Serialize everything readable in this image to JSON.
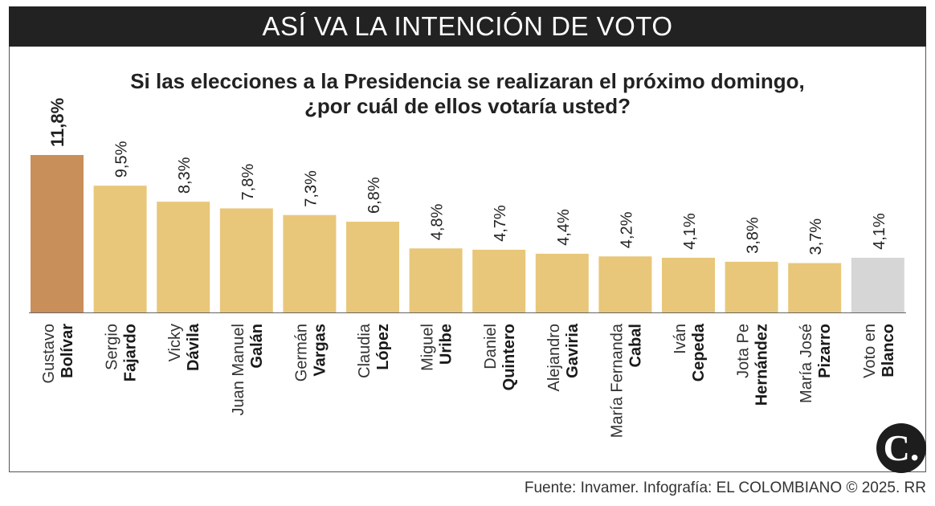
{
  "header": {
    "title": "ASÍ VA LA INTENCIÓN DE VOTO"
  },
  "subtitle": {
    "line1": "Si las elecciones a la Presidencia se realizaran el próximo domingo,",
    "line2": "¿por cuál de ellos votaría usted?"
  },
  "chart_data": {
    "type": "bar",
    "title": "ASÍ VA LA INTENCIÓN DE VOTO",
    "subtitle": "Si las elecciones a la Presidencia se realizaran el próximo domingo, ¿por cuál de ellos votaría usted?",
    "ylim": [
      0,
      11.8
    ],
    "xlabel": "",
    "ylabel": "",
    "grid": false,
    "categories": [
      {
        "first": "Gustavo",
        "last": "Bolívar"
      },
      {
        "first": "Sergio",
        "last": "Fajardo"
      },
      {
        "first": "Vicky",
        "last": "Dávila"
      },
      {
        "first": "Juan Manuel",
        "last": "Galán"
      },
      {
        "first": "Germán",
        "last": "Vargas"
      },
      {
        "first": "Claudia",
        "last": "López"
      },
      {
        "first": "Miguel",
        "last": "Uribe"
      },
      {
        "first": "Daniel",
        "last": "Quintero"
      },
      {
        "first": "Alejandro",
        "last": "Gaviria"
      },
      {
        "first": "María Fernanda",
        "last": "Cabal"
      },
      {
        "first": "Iván",
        "last": "Cepeda"
      },
      {
        "first": "Jota Pe",
        "last": "Hernández"
      },
      {
        "first": "María José",
        "last": "Pizarro"
      },
      {
        "first": "Voto en",
        "last": "Blanco"
      }
    ],
    "values": [
      11.8,
      9.5,
      8.3,
      7.8,
      7.3,
      6.8,
      4.8,
      4.7,
      4.4,
      4.2,
      4.1,
      3.8,
      3.7,
      4.1
    ],
    "value_labels": [
      "11,8%",
      "9,5%",
      "8,3%",
      "7,8%",
      "7,3%",
      "6,8%",
      "4,8%",
      "4,7%",
      "4,4%",
      "4,2%",
      "4,1%",
      "3,8%",
      "3,7%",
      "4,1%"
    ],
    "colors": [
      "#c98f5b",
      "#e8c77a",
      "#e8c77a",
      "#e8c77a",
      "#e8c77a",
      "#e8c77a",
      "#e8c77a",
      "#e8c77a",
      "#e8c77a",
      "#e8c77a",
      "#e8c77a",
      "#e8c77a",
      "#e8c77a",
      "#d6d6d6"
    ],
    "highlight_index": 0
  },
  "footer": {
    "source": "Fuente: Invamer. Infografía: EL COLOMBIANO © 2025. RR"
  },
  "logo": {
    "text": "C."
  },
  "colors": {
    "header_bg": "#222222",
    "bar": "#e8c77a",
    "bar_highlight": "#c98f5b",
    "bar_blank": "#d6d6d6"
  }
}
